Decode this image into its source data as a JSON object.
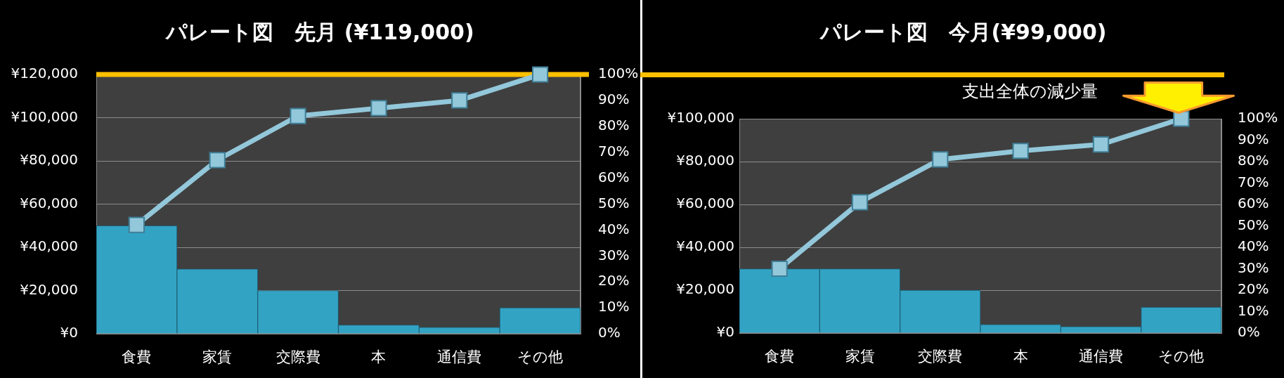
{
  "chart_data": [
    {
      "type": "bar",
      "title": "パレート図　先月 (¥119,000)",
      "categories": [
        "食費",
        "家賃",
        "交際費",
        "本",
        "通信費",
        "その他"
      ],
      "series": [
        {
          "color": "#33a3c4",
          "values": [
            50000,
            30000,
            20000,
            4000,
            3000,
            12000
          ]
        },
        {
          "type": "line",
          "axis": "y2",
          "color": "#93c7da",
          "values": [
            42,
            67,
            84,
            87,
            90,
            100
          ]
        }
      ],
      "ylim": [
        0,
        120000
      ],
      "yticks": [
        {
          "value": 0,
          "label": "¥0"
        },
        {
          "value": 20000,
          "label": "¥20,000"
        },
        {
          "value": 40000,
          "label": "¥40,000"
        },
        {
          "value": 60000,
          "label": "¥60,000"
        },
        {
          "value": 80000,
          "label": "¥80,000"
        },
        {
          "value": 100000,
          "label": "¥100,000"
        },
        {
          "value": 120000,
          "label": "¥120,000"
        }
      ],
      "y2lim": [
        0,
        100
      ],
      "y2ticks": [
        {
          "value": 0,
          "label": "0%"
        },
        {
          "value": 10,
          "label": "10%"
        },
        {
          "value": 20,
          "label": "20%"
        },
        {
          "value": 30,
          "label": "30%"
        },
        {
          "value": 40,
          "label": "40%"
        },
        {
          "value": 50,
          "label": "50%"
        },
        {
          "value": 60,
          "label": "60%"
        },
        {
          "value": 70,
          "label": "70%"
        },
        {
          "value": 80,
          "label": "80%"
        },
        {
          "value": 90,
          "label": "90%"
        },
        {
          "value": 100,
          "label": "100%"
        }
      ],
      "grid": "y",
      "marker": "square",
      "line_style": "solid",
      "ref_lines": [
        {
          "axis": "y2",
          "value": 100,
          "color": "#ffc000"
        }
      ]
    },
    {
      "type": "bar",
      "title": "パレート図　今月(¥99,000)",
      "categories": [
        "食費",
        "家賃",
        "交際費",
        "本",
        "通信費",
        "その他"
      ],
      "series": [
        {
          "color": "#33a3c4",
          "values": [
            30000,
            30000,
            20000,
            4000,
            3000,
            12000
          ]
        },
        {
          "type": "line",
          "axis": "y2",
          "color": "#93c7da",
          "values": [
            30,
            61,
            81,
            85,
            88,
            100
          ]
        }
      ],
      "ylim": [
        0,
        100000
      ],
      "yticks": [
        {
          "value": 0,
          "label": "¥0"
        },
        {
          "value": 20000,
          "label": "¥20,000"
        },
        {
          "value": 40000,
          "label": "¥40,000"
        },
        {
          "value": 60000,
          "label": "¥60,000"
        },
        {
          "value": 80000,
          "label": "¥80,000"
        },
        {
          "value": 100000,
          "label": "¥100,000"
        }
      ],
      "y2lim": [
        0,
        100
      ],
      "y2ticks": [
        {
          "value": 0,
          "label": "0%"
        },
        {
          "value": 10,
          "label": "10%"
        },
        {
          "value": 20,
          "label": "20%"
        },
        {
          "value": 30,
          "label": "30%"
        },
        {
          "value": 40,
          "label": "40%"
        },
        {
          "value": 50,
          "label": "50%"
        },
        {
          "value": 60,
          "label": "60%"
        },
        {
          "value": 70,
          "label": "70%"
        },
        {
          "value": 80,
          "label": "80%"
        },
        {
          "value": 90,
          "label": "90%"
        },
        {
          "value": 100,
          "label": "100%"
        }
      ],
      "grid": "y",
      "marker": "square",
      "line_style": "solid",
      "annotations": [
        "支出全体の減少量"
      ]
    }
  ]
}
